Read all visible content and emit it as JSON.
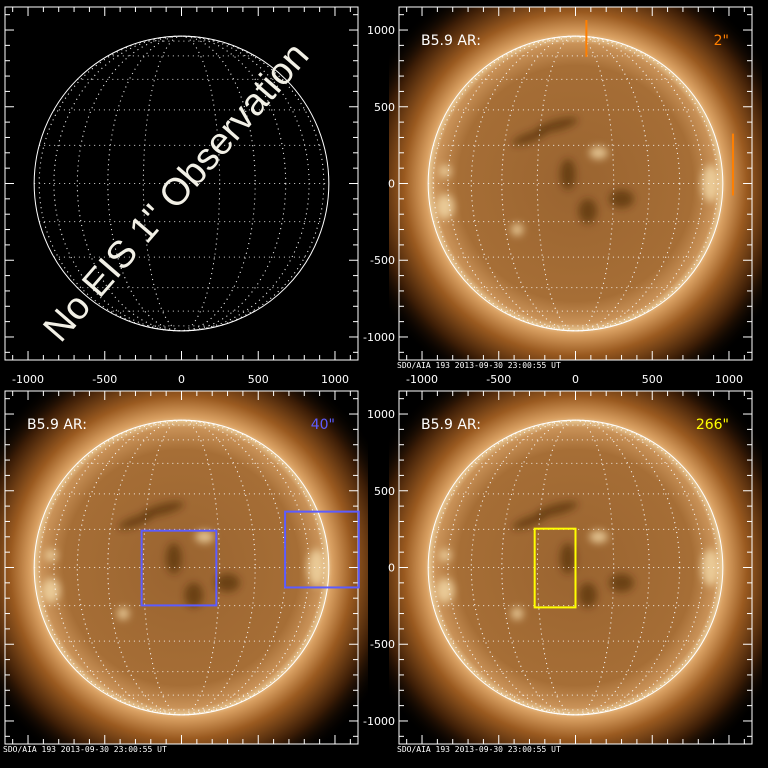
{
  "sun_radius_arcsec": 960,
  "axis": {
    "xlim": [
      -1150,
      1150
    ],
    "ylim": [
      -1150,
      1150
    ],
    "x_ticks": [
      -1000,
      -500,
      0,
      500,
      1000
    ],
    "y_ticks": [
      -1000,
      -500,
      0,
      500,
      1000
    ]
  },
  "caption": "SDO/AIA  193    2013-09-30 23:00:55 UT",
  "panels": [
    {
      "id": "top-left",
      "image": false,
      "watermark": "No EIS 1\" Observation",
      "show_x_ticklabels": true,
      "overlays": []
    },
    {
      "id": "top-right",
      "image": true,
      "label": "B5.9 AR:",
      "slit": "2\"",
      "slit_color": "#ff7f00",
      "caption": true,
      "show_x_ticklabels": true,
      "show_y_ticklabels": true,
      "overlays": [
        {
          "type": "line",
          "x": 71,
          "y0": 825,
          "y1": 1065
        },
        {
          "type": "line",
          "x": 1026,
          "y0": -78,
          "y1": 325
        }
      ]
    },
    {
      "id": "bottom-left",
      "image": true,
      "label": "B5.9 AR:",
      "slit": "40\"",
      "slit_color": "#5c5cff",
      "caption": true,
      "show_x_ticklabels": false,
      "overlays": [
        {
          "type": "box",
          "x0": -260,
          "x1": 227,
          "y0": -247,
          "y1": 240
        },
        {
          "type": "box",
          "x0": 675,
          "x1": 1155,
          "y0": -130,
          "y1": 364
        }
      ]
    },
    {
      "id": "bottom-right",
      "image": true,
      "label": "B5.9 AR:",
      "slit": "266\"",
      "slit_color": "#ffff00",
      "caption": true,
      "show_x_ticklabels": false,
      "show_y_ticklabels": true,
      "overlays": [
        {
          "type": "box",
          "x0": -266,
          "x1": 0,
          "y0": -260,
          "y1": 253
        }
      ]
    }
  ]
}
